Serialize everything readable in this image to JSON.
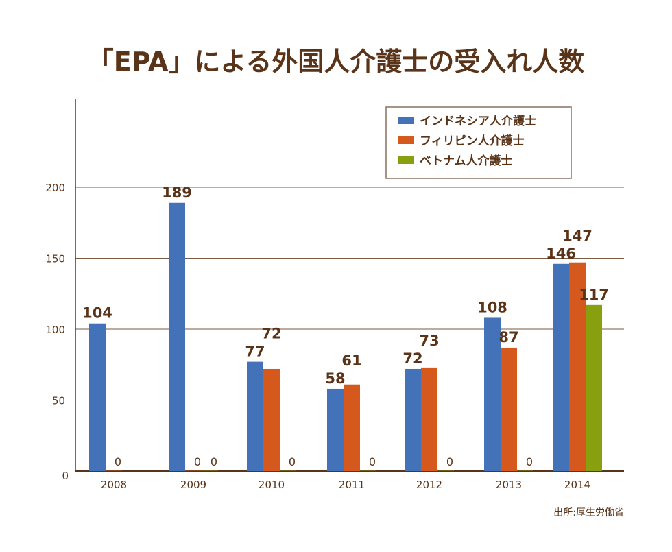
{
  "chart_data": {
    "type": "bar",
    "title": "「EPA」による外国人介護士の受入れ人数",
    "categories": [
      "2008",
      "2009",
      "2010",
      "2011",
      "2012",
      "2013",
      "2014"
    ],
    "series": [
      {
        "name": "インドネシア人介護士",
        "color": "#4472b8",
        "values": [
          104,
          189,
          77,
          58,
          72,
          108,
          146
        ]
      },
      {
        "name": "フィリピン人介護士",
        "color": "#d5591c",
        "values": [
          0,
          0,
          72,
          61,
          73,
          87,
          147
        ]
      },
      {
        "name": "ベトナム人介護士",
        "color": "#88a010",
        "values": [
          null,
          0,
          0,
          0,
          0,
          0,
          117
        ]
      }
    ],
    "yticks": [
      0,
      50,
      100,
      150,
      200
    ],
    "ylim": [
      0,
      200
    ],
    "grid": true,
    "legend": "top-right",
    "source": "出所:厚生労働省",
    "axis_color": "#5a3418",
    "grid_color": "#7a5a40"
  }
}
